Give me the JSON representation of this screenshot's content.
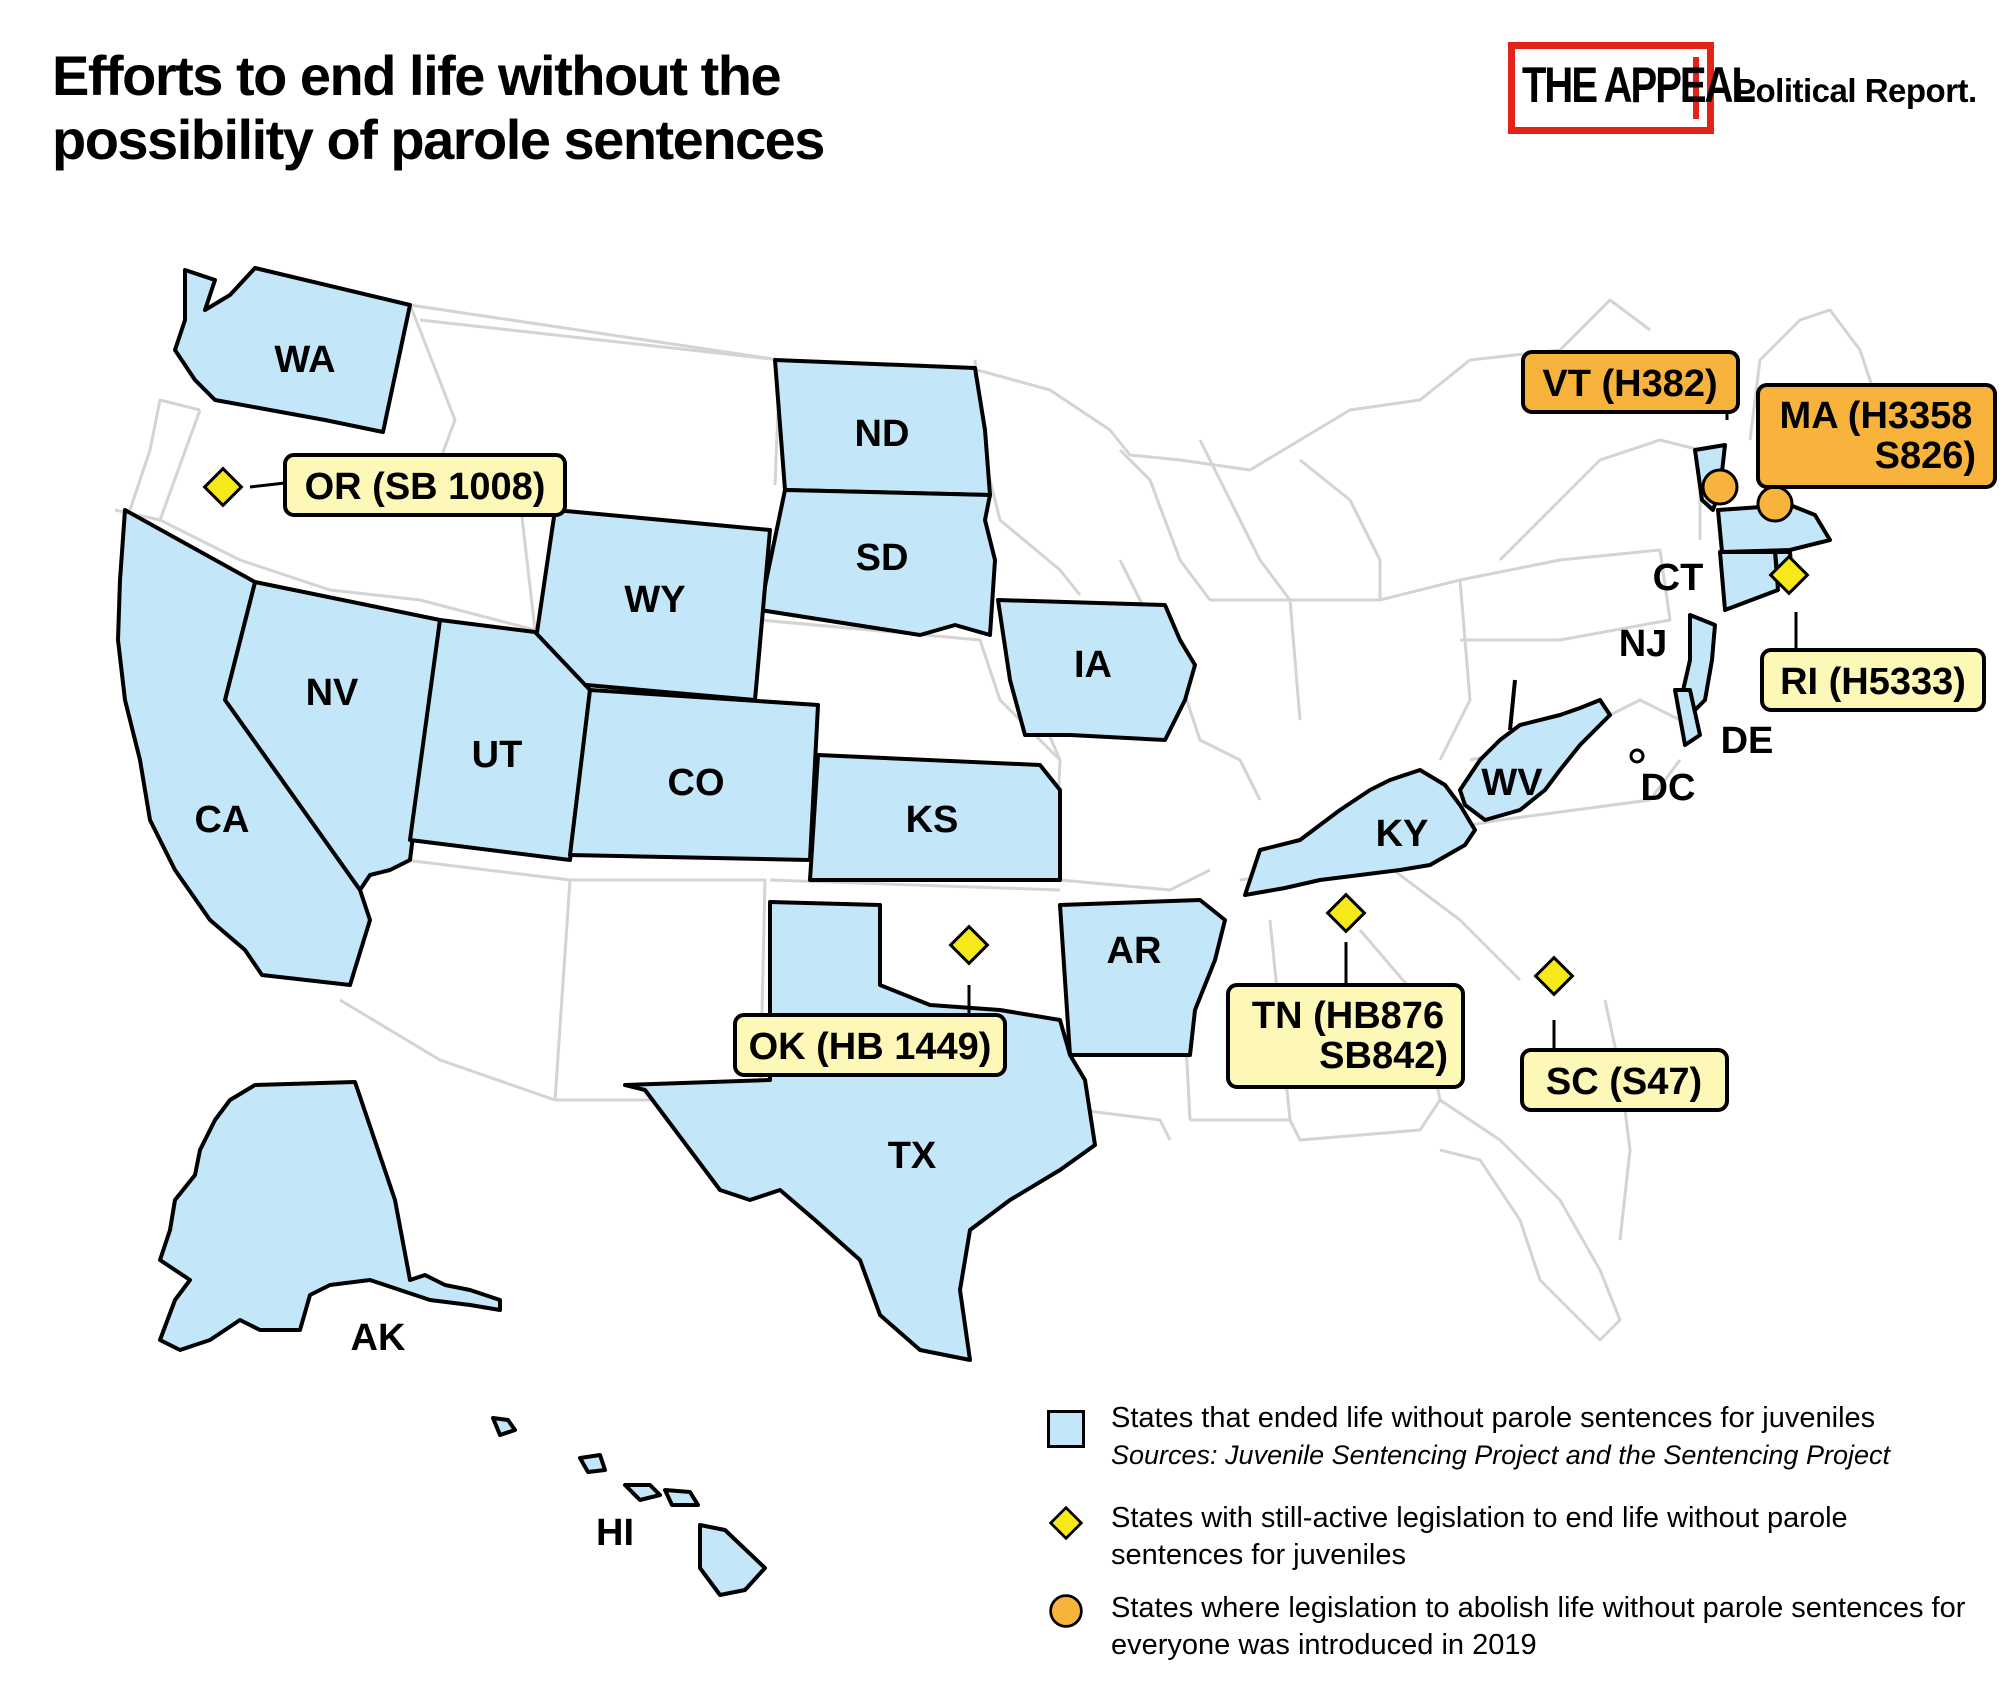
{
  "title": "Efforts to end life without the possibility of parole sentences",
  "logo": {
    "mark": "THE APPEAL",
    "subtitle": "Political Report."
  },
  "colors": {
    "ended_juveniles": "#c4e6f9",
    "active_legislation": "#f6e91a",
    "abolish_everyone": "#f7b33b",
    "label_pale": "#fdf7b8",
    "label_orange": "#f7b33b",
    "outline": "#000000",
    "basemap_border": "#d4d4d4"
  },
  "state_labels": [
    "WA",
    "ND",
    "SD",
    "WY",
    "NV",
    "UT",
    "CO",
    "CA",
    "KS",
    "IA",
    "AR",
    "TX",
    "KY",
    "WV",
    "CT",
    "NJ",
    "DE",
    "DC",
    "AK",
    "HI"
  ],
  "callouts": [
    {
      "id": "or",
      "text": "OR (SB 1008)",
      "marker": "diamond"
    },
    {
      "id": "ok",
      "text": "OK (HB 1449)",
      "marker": "diamond"
    },
    {
      "id": "tn",
      "text_line1": "TN (HB876",
      "text_line2": "SB842)",
      "marker": "diamond"
    },
    {
      "id": "sc",
      "text": "SC (S47)",
      "marker": "diamond"
    },
    {
      "id": "ri",
      "text": "RI (H5333)",
      "marker": "diamond"
    },
    {
      "id": "vt",
      "text": "VT (H382)",
      "marker": "circle"
    },
    {
      "id": "ma",
      "text_line1": "MA (H3358",
      "text_line2": "S826)",
      "marker": "circle"
    }
  ],
  "legend": [
    {
      "marker": "square",
      "text": "States that ended life without parole sentences for juveniles",
      "source": "Sources: Juvenile Sentencing Project and the Sentencing Project"
    },
    {
      "marker": "diamond",
      "text": "States with still-active legislation to end life without parole sentences for juveniles"
    },
    {
      "marker": "circle",
      "text": "States where legislation to abolish life without parole sentences for everyone was introduced in 2019"
    }
  ]
}
